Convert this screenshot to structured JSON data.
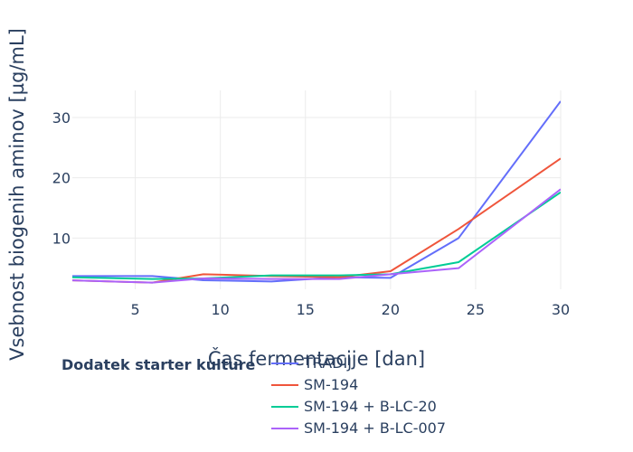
{
  "chart_data": {
    "type": "line",
    "xlabel": "Čas fermentacije [dan]",
    "ylabel": "Vsebnost biogenih aminov [µg/mL]",
    "xlim": [
      1.3,
      30
    ],
    "ylim": [
      1.5,
      34.5
    ],
    "x_ticks": [
      5,
      10,
      15,
      20,
      25,
      30
    ],
    "y_ticks": [
      10,
      20,
      30
    ],
    "grid": true,
    "legend": {
      "title": "Dodatek starter kulture",
      "placement": "bottom"
    },
    "series": [
      {
        "name": "TRADIJ",
        "color": "#636efa",
        "x": [
          1,
          6,
          9,
          13,
          17,
          20,
          24,
          30
        ],
        "y": [
          3.7,
          3.7,
          3.0,
          2.8,
          3.5,
          3.4,
          10.0,
          32.7
        ]
      },
      {
        "name": "SM-194",
        "color": "#ef553b",
        "x": [
          1,
          6,
          9,
          13,
          17,
          20,
          24,
          30
        ],
        "y": [
          3.0,
          2.6,
          4.0,
          3.7,
          3.5,
          4.5,
          11.5,
          23.2
        ]
      },
      {
        "name": "SM-194 + B-LC-20",
        "color": "#00cc96",
        "x": [
          1,
          6,
          9,
          13,
          17,
          20,
          24,
          30
        ],
        "y": [
          3.5,
          3.2,
          3.3,
          3.8,
          3.8,
          4.0,
          6.0,
          17.6
        ]
      },
      {
        "name": "SM-194 + B-LC-007",
        "color": "#ab63fa",
        "x": [
          1,
          6,
          9,
          13,
          17,
          20,
          24,
          30
        ],
        "y": [
          3.0,
          2.6,
          3.3,
          3.2,
          3.2,
          4.0,
          5.0,
          18.1
        ]
      }
    ]
  }
}
